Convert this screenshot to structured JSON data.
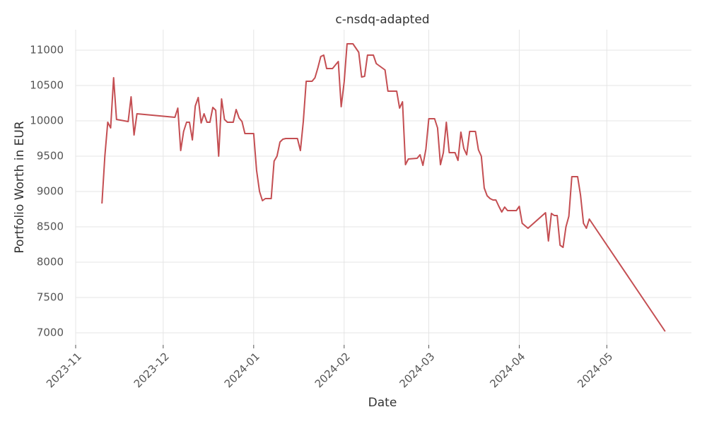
{
  "chart_data": {
    "type": "line",
    "title": "c-nsdq-adapted",
    "x_label": "Date",
    "y_label": "Portfolio Worth in EUR",
    "x": [
      9,
      10,
      11,
      12,
      13,
      14,
      18,
      19,
      20,
      21,
      34,
      35,
      36,
      37,
      38,
      39,
      40,
      41,
      42,
      43,
      44,
      45,
      46,
      47,
      48,
      49,
      50,
      51,
      52,
      54,
      55,
      56,
      57,
      58,
      61,
      62,
      63,
      64,
      65,
      67,
      68,
      69,
      70,
      71,
      72,
      76,
      77,
      78,
      79,
      81,
      82,
      83,
      84,
      85,
      86,
      88,
      89,
      90,
      91,
      92,
      93,
      95,
      97,
      98,
      99,
      100,
      102,
      103,
      106,
      107,
      110,
      111,
      112,
      113,
      114,
      117,
      118,
      119,
      120,
      121,
      123,
      124,
      125,
      126,
      127,
      128,
      130,
      131,
      132,
      133,
      134,
      135,
      137,
      138,
      139,
      140,
      141,
      142,
      143,
      144,
      145,
      146,
      147,
      148,
      151,
      152,
      153,
      155,
      161,
      162,
      163,
      164,
      165,
      166,
      167,
      168,
      169,
      170,
      172,
      173,
      174,
      175,
      176,
      202
    ],
    "series": [
      {
        "name": "c-nsdq-adapted",
        "color": "#c44e52",
        "values": [
          8830,
          9500,
          9980,
          9900,
          10610,
          10020,
          9990,
          10340,
          9800,
          10100,
          10050,
          10180,
          9580,
          9850,
          9980,
          9980,
          9730,
          10210,
          10330,
          9970,
          10100,
          9980,
          9980,
          10190,
          10150,
          9500,
          10310,
          10020,
          9980,
          9980,
          10160,
          10040,
          9990,
          9820,
          9820,
          9300,
          9000,
          8870,
          8900,
          8900,
          9430,
          9500,
          9700,
          9740,
          9750,
          9750,
          9580,
          9990,
          10560,
          10560,
          10610,
          10750,
          10910,
          10930,
          10740,
          10740,
          10790,
          10840,
          10200,
          10550,
          11090,
          11090,
          10970,
          10620,
          10630,
          10930,
          10930,
          10810,
          10720,
          10420,
          10420,
          10180,
          10270,
          9380,
          9460,
          9470,
          9520,
          9370,
          9600,
          10030,
          10030,
          9900,
          9380,
          9550,
          9980,
          9550,
          9550,
          9440,
          9840,
          9610,
          9520,
          9850,
          9850,
          9590,
          9500,
          9050,
          8940,
          8900,
          8880,
          8880,
          8790,
          8710,
          8780,
          8730,
          8730,
          8790,
          8550,
          8480,
          8700,
          8300,
          8690,
          8660,
          8660,
          8240,
          8210,
          8500,
          8650,
          9210,
          9210,
          8950,
          8550,
          8480,
          8610,
          7020
        ]
      }
    ],
    "xlim": [
      0,
      211
    ],
    "xticks": [
      {
        "value": 0,
        "label": "2023-11"
      },
      {
        "value": 30,
        "label": "2023-12"
      },
      {
        "value": 61,
        "label": "2024-01"
      },
      {
        "value": 92,
        "label": "2024-02"
      },
      {
        "value": 121,
        "label": "2024-03"
      },
      {
        "value": 152,
        "label": "2024-04"
      },
      {
        "value": 182,
        "label": "2024-05"
      }
    ],
    "ylim": [
      6830,
      11290
    ],
    "yticks": [
      7000,
      7500,
      8000,
      8500,
      9000,
      9500,
      10000,
      10500,
      11000
    ],
    "grid": true
  }
}
